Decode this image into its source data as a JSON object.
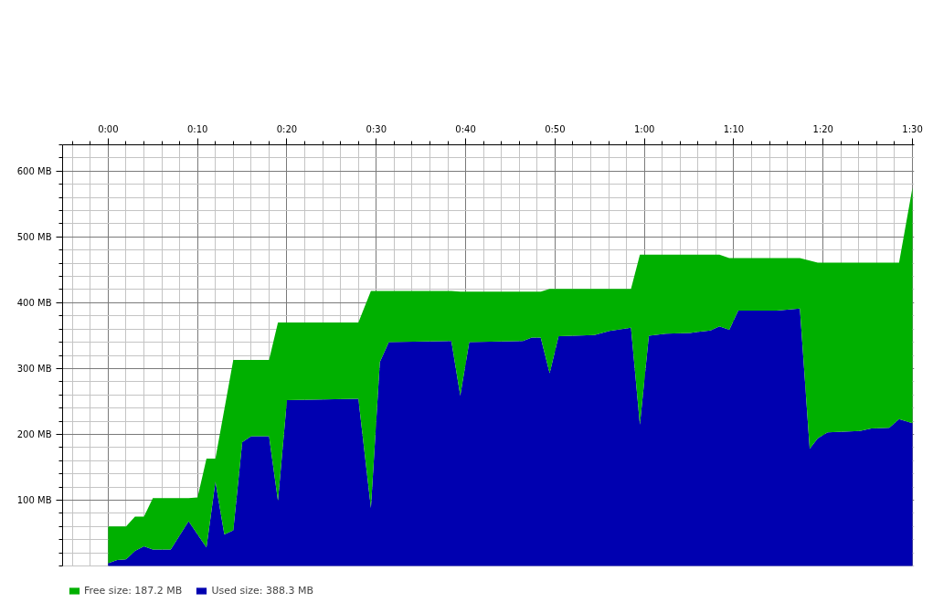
{
  "chart_data": {
    "type": "area",
    "stacked": true,
    "x": [
      0,
      1,
      2,
      3,
      4,
      5,
      7,
      9,
      10,
      11,
      12,
      13,
      14,
      15,
      16,
      18,
      19,
      20,
      28,
      29.4,
      30.4,
      31.4,
      38.4,
      39.4,
      40.4,
      46.4,
      47.4,
      48.4,
      49.4,
      50.4,
      54.4,
      56.1,
      58.5,
      59.5,
      60.5,
      62.4,
      65.1,
      67.4,
      68.4,
      69.5,
      70.5,
      74.8,
      77.4,
      78.5,
      79.4,
      80.5,
      84.1,
      85.4,
      87.4,
      88.5,
      90
    ],
    "series": [
      {
        "name": "Used size: 388.3 MB",
        "color": "#0000b0",
        "values": [
          4,
          9,
          10,
          23,
          30,
          25,
          25,
          68,
          48,
          28,
          128,
          48,
          54,
          188,
          197,
          197,
          99,
          252,
          254,
          88,
          310,
          340,
          342,
          259,
          340,
          342,
          347,
          347,
          293,
          349,
          351,
          357,
          362,
          215,
          350,
          353,
          354,
          358,
          364,
          359,
          388,
          388,
          391,
          178,
          194,
          203,
          205,
          209,
          210,
          223,
          217
        ]
      },
      {
        "name": "Free size: 187.2 MB",
        "color": "#00b000",
        "values": [
          56,
          51,
          50,
          52,
          45,
          78,
          78,
          35,
          56,
          135,
          35,
          190,
          259,
          125,
          116,
          116,
          271,
          118,
          116,
          330,
          108,
          78,
          76,
          158,
          77,
          75,
          70,
          70,
          128,
          72,
          70,
          64,
          59,
          258,
          123,
          120,
          119,
          115,
          109,
          109,
          80,
          80,
          77,
          286,
          267,
          258,
          256,
          252,
          251,
          238,
          358
        ]
      }
    ],
    "xlim": [
      -5.1,
      90.2
    ],
    "ylim": [
      0,
      640
    ],
    "xticks": [
      {
        "value": 0,
        "label": "0:00"
      },
      {
        "value": 10,
        "label": "0:10"
      },
      {
        "value": 20,
        "label": "0:20"
      },
      {
        "value": 30,
        "label": "0:30"
      },
      {
        "value": 40,
        "label": "0:40"
      },
      {
        "value": 50,
        "label": "0:50"
      },
      {
        "value": 60,
        "label": "1:00"
      },
      {
        "value": 70,
        "label": "1:10"
      },
      {
        "value": 80,
        "label": "1:20"
      },
      {
        "value": 90,
        "label": "1:30"
      }
    ],
    "yticks": [
      {
        "value": 100,
        "label": "100 MB"
      },
      {
        "value": 200,
        "label": "200 MB"
      },
      {
        "value": 300,
        "label": "300 MB"
      },
      {
        "value": 400,
        "label": "400 MB"
      },
      {
        "value": 500,
        "label": "500 MB"
      },
      {
        "value": 600,
        "label": "600 MB"
      }
    ],
    "grid": true,
    "legend": "bottom left"
  }
}
